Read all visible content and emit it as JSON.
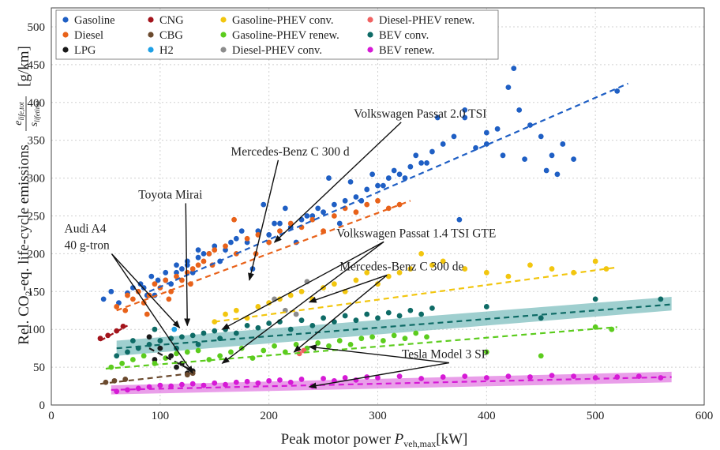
{
  "chart_data": {
    "type": "scatter",
    "xlabel": "Peak motor power P_veh,max [kW]",
    "ylabel": "Rel. CO2-eq. life-cycle emissions e_life,tot / s_lifetime [g/km]",
    "xlim": [
      0,
      600
    ],
    "ylim": [
      0,
      525
    ],
    "x_ticks": [
      "0",
      "100",
      "200",
      "300",
      "400",
      "500",
      "600"
    ],
    "y_ticks": [
      "0",
      "50",
      "100",
      "150",
      "200",
      "250",
      "300",
      "350",
      "400",
      "450",
      "500"
    ],
    "grid": true,
    "legend_position": "top-left",
    "legend": [
      {
        "name": "Gasoline",
        "color": "#1f5fc4"
      },
      {
        "name": "Diesel",
        "color": "#e8621a"
      },
      {
        "name": "LPG",
        "color": "#1a1a1a"
      },
      {
        "name": "CNG",
        "color": "#a3141c"
      },
      {
        "name": "CBG",
        "color": "#6b4a2e"
      },
      {
        "name": "H2",
        "color": "#1ea0e6"
      },
      {
        "name": "Gasoline-PHEV conv.",
        "color": "#f2c60f"
      },
      {
        "name": "Gasoline-PHEV renew.",
        "color": "#5ccc1e"
      },
      {
        "name": "Diesel-PHEV conv.",
        "color": "#8c8c8c"
      },
      {
        "name": "Diesel-PHEV renew.",
        "color": "#f06262"
      },
      {
        "name": "BEV conv.",
        "color": "#0e6b66"
      },
      {
        "name": "BEV renew.",
        "color": "#d61ad6"
      }
    ],
    "series": [
      {
        "name": "Gasoline",
        "color": "#1f5fc4",
        "x": [
          48,
          55,
          62,
          70,
          75,
          82,
          88,
          92,
          98,
          105,
          110,
          115,
          120,
          125,
          130,
          135,
          140,
          150,
          160,
          170,
          180,
          190,
          200,
          210,
          220,
          230,
          240,
          250,
          260,
          270,
          280,
          290,
          300,
          310,
          320,
          330,
          340,
          350,
          360,
          370,
          375,
          380,
          390,
          400,
          410,
          420,
          425,
          430,
          440,
          450,
          460,
          470,
          480,
          520,
          95,
          115,
          135,
          155,
          175,
          195,
          215,
          235,
          255,
          275,
          295,
          315,
          335,
          355,
          380,
          400,
          415,
          435,
          455,
          465,
          85,
          105,
          125,
          145,
          165,
          185,
          205,
          225,
          245,
          265,
          285,
          305,
          325,
          345
        ],
        "y": [
          140,
          150,
          135,
          148,
          155,
          160,
          145,
          170,
          165,
          175,
          160,
          185,
          180,
          190,
          175,
          195,
          200,
          210,
          205,
          220,
          215,
          230,
          225,
          240,
          235,
          245,
          250,
          255,
          265,
          270,
          275,
          285,
          290,
          300,
          305,
          315,
          320,
          335,
          345,
          355,
          245,
          380,
          340,
          345,
          365,
          420,
          445,
          390,
          370,
          355,
          330,
          345,
          325,
          415,
          145,
          175,
          205,
          190,
          230,
          265,
          260,
          250,
          300,
          295,
          305,
          310,
          330,
          380,
          390,
          360,
          330,
          325,
          310,
          305,
          155,
          165,
          185,
          200,
          215,
          180,
          240,
          215,
          260,
          240,
          270,
          290,
          300,
          320
        ]
      },
      {
        "name": "Diesel",
        "color": "#e8621a",
        "x": [
          60,
          68,
          75,
          80,
          85,
          90,
          95,
          100,
          105,
          110,
          115,
          120,
          125,
          130,
          135,
          140,
          145,
          150,
          160,
          170,
          180,
          190,
          200,
          210,
          220,
          230,
          240,
          250,
          260,
          270,
          280,
          290,
          300,
          310,
          320,
          70,
          88,
          108,
          128,
          148,
          168,
          188
        ],
        "y": [
          130,
          125,
          140,
          150,
          135,
          145,
          160,
          155,
          165,
          150,
          170,
          165,
          175,
          180,
          185,
          190,
          200,
          205,
          210,
          200,
          220,
          225,
          215,
          230,
          240,
          235,
          245,
          230,
          250,
          260,
          255,
          265,
          270,
          260,
          265,
          145,
          120,
          140,
          160,
          185,
          245,
          200
        ]
      },
      {
        "name": "LPG",
        "color": "#1a1a1a",
        "x": [
          90,
          100,
          110,
          120,
          130,
          95,
          115,
          125
        ],
        "y": [
          90,
          75,
          65,
          55,
          45,
          60,
          50,
          42
        ]
      },
      {
        "name": "CNG",
        "color": "#a3141c",
        "x": [
          45,
          52,
          60,
          66
        ],
        "y": [
          88,
          92,
          98,
          104
        ]
      },
      {
        "name": "CBG",
        "color": "#6b4a2e",
        "x": [
          50,
          58,
          68,
          125,
          130
        ],
        "y": [
          30,
          32,
          34,
          40,
          42
        ]
      },
      {
        "name": "H2",
        "color": "#1ea0e6",
        "x": [
          113
        ],
        "y": [
          100
        ]
      },
      {
        "name": "Gasoline-PHEV conv.",
        "color": "#f2c60f",
        "x": [
          150,
          160,
          170,
          180,
          190,
          200,
          210,
          220,
          230,
          240,
          250,
          260,
          270,
          280,
          290,
          300,
          310,
          320,
          330,
          340,
          350,
          360,
          380,
          400,
          420,
          440,
          460,
          480,
          500,
          510
        ],
        "y": [
          110,
          120,
          125,
          115,
          130,
          135,
          140,
          145,
          150,
          140,
          155,
          160,
          150,
          165,
          175,
          160,
          170,
          175,
          180,
          200,
          185,
          190,
          180,
          175,
          170,
          185,
          180,
          175,
          190,
          180
        ]
      },
      {
        "name": "Gasoline-PHEV renew.",
        "color": "#5ccc1e",
        "x": [
          55,
          65,
          75,
          85,
          95,
          105,
          115,
          125,
          135,
          145,
          155,
          165,
          175,
          185,
          195,
          205,
          215,
          225,
          235,
          245,
          255,
          265,
          275,
          285,
          295,
          305,
          315,
          325,
          335,
          345,
          400,
          450,
          500,
          515
        ],
        "y": [
          50,
          55,
          60,
          65,
          55,
          62,
          68,
          70,
          72,
          60,
          65,
          70,
          75,
          62,
          72,
          78,
          70,
          80,
          75,
          82,
          78,
          85,
          80,
          88,
          90,
          85,
          92,
          88,
          95,
          90,
          70,
          65,
          103,
          100
        ]
      },
      {
        "name": "Diesel-PHEV conv.",
        "color": "#8c8c8c",
        "x": [
          225,
          235,
          205,
          215
        ],
        "y": [
          120,
          163,
          140,
          125
        ]
      },
      {
        "name": "Diesel-PHEV renew.",
        "color": "#f06262",
        "x": [
          228,
          232
        ],
        "y": [
          68,
          72
        ]
      },
      {
        "name": "BEV conv.",
        "color": "#0e6b66",
        "x": [
          60,
          70,
          80,
          90,
          100,
          110,
          120,
          130,
          140,
          150,
          160,
          170,
          180,
          190,
          200,
          210,
          220,
          230,
          240,
          250,
          260,
          270,
          280,
          290,
          300,
          310,
          320,
          330,
          340,
          350,
          400,
          450,
          500,
          560,
          75,
          95,
          115,
          135,
          155
        ],
        "y": [
          65,
          70,
          75,
          80,
          85,
          88,
          90,
          92,
          95,
          98,
          100,
          95,
          105,
          102,
          108,
          110,
          100,
          112,
          105,
          115,
          110,
          118,
          112,
          120,
          115,
          122,
          118,
          125,
          120,
          128,
          130,
          115,
          140,
          140,
          85,
          100,
          75,
          80,
          88
        ]
      },
      {
        "name": "BEV renew.",
        "color": "#d61ad6",
        "x": [
          60,
          70,
          80,
          90,
          100,
          110,
          120,
          130,
          140,
          150,
          160,
          170,
          180,
          190,
          200,
          210,
          220,
          230,
          240,
          250,
          260,
          270,
          280,
          290,
          300,
          320,
          340,
          360,
          380,
          400,
          420,
          440,
          460,
          480,
          500,
          520,
          540,
          560
        ],
        "y": [
          18,
          20,
          22,
          24,
          26,
          25,
          27,
          28,
          26,
          29,
          27,
          30,
          31,
          29,
          32,
          33,
          30,
          34,
          25,
          35,
          32,
          36,
          33,
          37,
          36,
          38,
          35,
          37,
          38,
          36,
          38,
          37,
          39,
          38,
          36,
          37,
          38,
          36
        ]
      }
    ],
    "trend_lines": [
      {
        "name": "Gasoline",
        "color": "#1f5fc4",
        "x": [
          90,
          530
        ],
        "y": [
          150,
          425
        ]
      },
      {
        "name": "Diesel",
        "color": "#e8621a",
        "x": [
          60,
          330
        ],
        "y": [
          125,
          270
        ]
      },
      {
        "name": "CNG",
        "color": "#a3141c",
        "x": [
          45,
          70
        ],
        "y": [
          85,
          105
        ]
      },
      {
        "name": "LPG",
        "color": "#1a1a1a",
        "x": [
          90,
          130
        ],
        "y": [
          75,
          45
        ]
      },
      {
        "name": "CBG",
        "color": "#6b4a2e",
        "x": [
          45,
          130
        ],
        "y": [
          28,
          42
        ]
      },
      {
        "name": "Gasoline-PHEV conv.",
        "color": "#f2c60f",
        "x": [
          150,
          520
        ],
        "y": [
          110,
          182
        ]
      },
      {
        "name": "Gasoline-PHEV renew.",
        "color": "#5ccc1e",
        "x": [
          50,
          520
        ],
        "y": [
          48,
          103
        ]
      },
      {
        "name": "BEV conv.",
        "color": "#0e6b66",
        "x": [
          60,
          570
        ],
        "y": [
          75,
          133
        ]
      },
      {
        "name": "BEV renew.",
        "color": "#d61ad6",
        "x": [
          55,
          570
        ],
        "y": [
          20,
          37
        ]
      }
    ],
    "bands": [
      {
        "name": "BEV conv.",
        "color": "#7fbfbf",
        "x": [
          60,
          570
        ],
        "y_low": [
          65,
          125
        ],
        "y_high": [
          85,
          143
        ]
      },
      {
        "name": "BEV renew.",
        "color": "#e27de2",
        "x": [
          55,
          570
        ],
        "y_low": [
          14,
          30
        ],
        "y_high": [
          26,
          44
        ]
      }
    ],
    "annotations": [
      {
        "text": "Volkswagen Passat 2.0 TSI",
        "text_x": 278,
        "text_y": 380,
        "arrows": [
          [
            205,
            215
          ]
        ]
      },
      {
        "text": "Mercedes-Benz C 300 d",
        "text_x": 165,
        "text_y": 330,
        "arrows": [
          [
            182,
            165
          ]
        ]
      },
      {
        "text": "Toyota Mirai",
        "text_x": 80,
        "text_y": 273,
        "arrows": [
          [
            125,
            105
          ]
        ]
      },
      {
        "text": "Audi A4",
        "text_x": 12,
        "text_y": 228,
        "arrows": []
      },
      {
        "text": "40 g-tron",
        "text_x": 12,
        "text_y": 206,
        "arrows": [
          [
            118,
            102
          ],
          [
            130,
            42
          ]
        ]
      },
      {
        "text": "Volkswagen Passat 1.4 TSI GTE",
        "text_x": 262,
        "text_y": 222,
        "arrows": [
          [
            157,
            100
          ],
          [
            157,
            55
          ]
        ]
      },
      {
        "text": "Mercedes-Benz C 300 de",
        "text_x": 265,
        "text_y": 178,
        "arrows": [
          [
            237,
            136
          ],
          [
            223,
            70
          ]
        ]
      },
      {
        "text": "Tesla Model 3 SP",
        "text_x": 322,
        "text_y": 62,
        "arrows": [
          [
            237,
            77
          ],
          [
            237,
            24
          ]
        ]
      }
    ]
  }
}
